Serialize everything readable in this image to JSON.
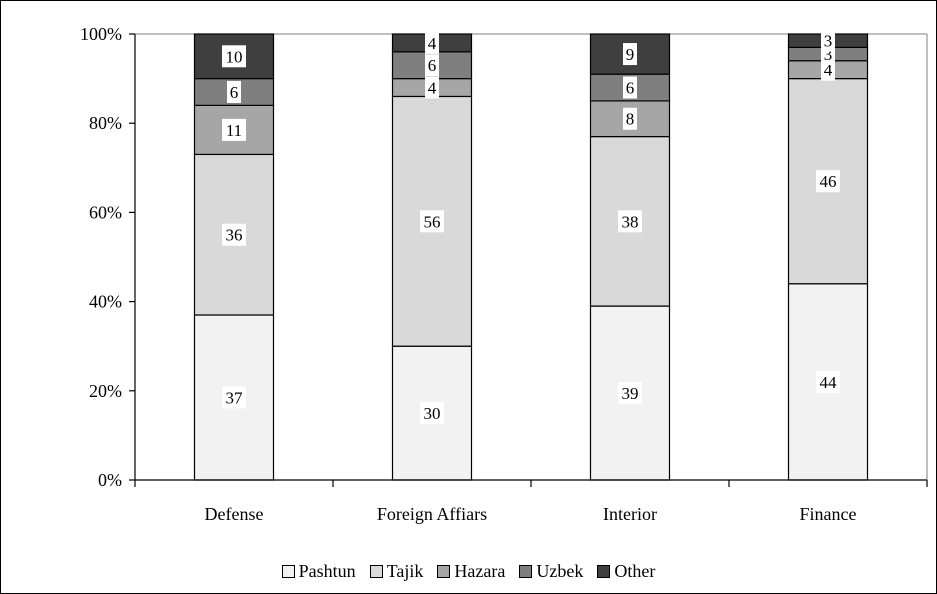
{
  "chart_data": {
    "type": "bar",
    "stacked": true,
    "categories": [
      "Defense",
      "Foreign Affiars",
      "Interior",
      "Finance"
    ],
    "series": [
      {
        "name": "Pashtun",
        "values": [
          37,
          30,
          39,
          44
        ],
        "color": "#f2f2f2"
      },
      {
        "name": "Tajik",
        "values": [
          36,
          56,
          38,
          46
        ],
        "color": "#d9d9d9"
      },
      {
        "name": "Hazara",
        "values": [
          11,
          4,
          8,
          4
        ],
        "color": "#a6a6a6"
      },
      {
        "name": "Uzbek",
        "values": [
          6,
          6,
          6,
          3
        ],
        "color": "#7f7f7f"
      },
      {
        "name": "Other",
        "values": [
          10,
          4,
          9,
          3
        ],
        "color": "#3f3f3f"
      }
    ],
    "y_ticks": [
      "0%",
      "20%",
      "40%",
      "60%",
      "80%",
      "100%"
    ],
    "ylim": [
      0,
      100
    ],
    "grid": false,
    "legend_position": "bottom"
  }
}
